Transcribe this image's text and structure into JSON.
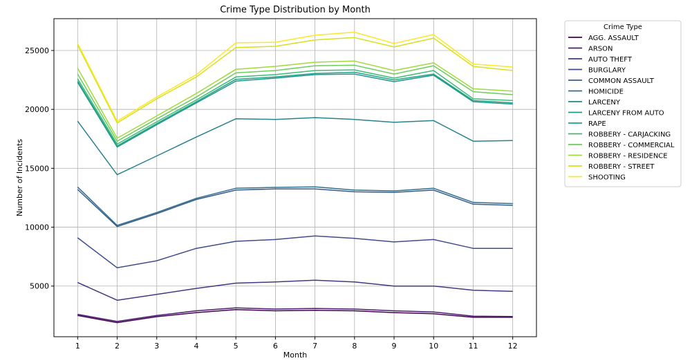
{
  "chart_data": {
    "type": "line",
    "title": "Crime Type Distribution by Month",
    "xlabel": "Month",
    "ylabel": "Number of Incidents",
    "x": [
      1,
      2,
      3,
      4,
      5,
      6,
      7,
      8,
      9,
      10,
      11,
      12
    ],
    "xlim": [
      0.4,
      12.6
    ],
    "ylim": [
      700,
      27700
    ],
    "yticks": [
      5000,
      10000,
      15000,
      20000,
      25000
    ],
    "xtick_labels": [
      "1",
      "2",
      "3",
      "4",
      "5",
      "6",
      "7",
      "8",
      "9",
      "10",
      "11",
      "12"
    ],
    "ytick_labels": [
      "5000",
      "10000",
      "15000",
      "20000",
      "25000"
    ],
    "grid": true,
    "legend_title": "Crime Type",
    "legend_position": "outside-right-top",
    "series": [
      {
        "name": "AGG. ASSAULT",
        "color": "#440154",
        "values": [
          2500,
          1900,
          2400,
          2750,
          3000,
          2900,
          2950,
          2900,
          2750,
          2650,
          2350,
          2350
        ]
      },
      {
        "name": "ARSON",
        "color": "#481c6e",
        "values": [
          2600,
          2000,
          2500,
          2900,
          3150,
          3050,
          3100,
          3050,
          2900,
          2800,
          2450,
          2420
        ]
      },
      {
        "name": "AUTO THEFT",
        "color": "#453781",
        "values": [
          5300,
          3800,
          4300,
          4800,
          5250,
          5350,
          5500,
          5350,
          5000,
          5000,
          4650,
          4550
        ]
      },
      {
        "name": "BURGLARY",
        "color": "#3f4c8a",
        "values": [
          9100,
          6550,
          7150,
          8200,
          8800,
          8950,
          9250,
          9050,
          8750,
          8950,
          8200,
          8200
        ]
      },
      {
        "name": "COMMON ASSAULT",
        "color": "#375b8d",
        "values": [
          13200,
          10050,
          11150,
          12350,
          13150,
          13250,
          13250,
          13000,
          12950,
          13150,
          11950,
          11850
        ]
      },
      {
        "name": "HOMICIDE",
        "color": "#2d6e8e",
        "values": [
          13400,
          10150,
          11250,
          12450,
          13300,
          13380,
          13420,
          13150,
          13080,
          13300,
          12100,
          12000
        ]
      },
      {
        "name": "LARCENY",
        "color": "#26828e",
        "values": [
          19000,
          14450,
          16050,
          17650,
          19200,
          19150,
          19300,
          19150,
          18900,
          19050,
          17300,
          17350
        ]
      },
      {
        "name": "LARCENY FROM AUTO",
        "color": "#1f968b",
        "values": [
          22300,
          16800,
          18700,
          20550,
          22400,
          22650,
          22950,
          23000,
          22350,
          22900,
          20650,
          20450
        ]
      },
      {
        "name": "RAPE",
        "color": "#20a386",
        "values": [
          22400,
          16900,
          18800,
          20650,
          22550,
          22750,
          23050,
          23150,
          22500,
          23000,
          20750,
          20550
        ]
      },
      {
        "name": "ROBBERY - CARJACKING",
        "color": "#3bbb75",
        "values": [
          22600,
          17050,
          18950,
          20800,
          22750,
          22950,
          23300,
          23350,
          22650,
          23300,
          20900,
          20750
        ]
      },
      {
        "name": "ROBBERY - COMMERCIAL",
        "color": "#6ccd5a",
        "values": [
          23000,
          17300,
          19200,
          21050,
          23100,
          23300,
          23700,
          23750,
          23000,
          23700,
          21500,
          21250
        ]
      },
      {
        "name": "ROBBERY - RESIDENCE",
        "color": "#a0da39",
        "values": [
          23500,
          17550,
          19450,
          21350,
          23400,
          23650,
          24000,
          24100,
          23300,
          23950,
          21750,
          21550
        ]
      },
      {
        "name": "ROBBERY - STREET",
        "color": "#d5e21a",
        "values": [
          25450,
          18850,
          20900,
          22750,
          25250,
          25350,
          25900,
          26100,
          25300,
          26050,
          23650,
          23300
        ]
      },
      {
        "name": "SHOOTING",
        "color": "#fde725",
        "values": [
          25600,
          19000,
          21050,
          22950,
          25650,
          25700,
          26300,
          26550,
          25600,
          26350,
          23850,
          23600
        ]
      }
    ]
  }
}
